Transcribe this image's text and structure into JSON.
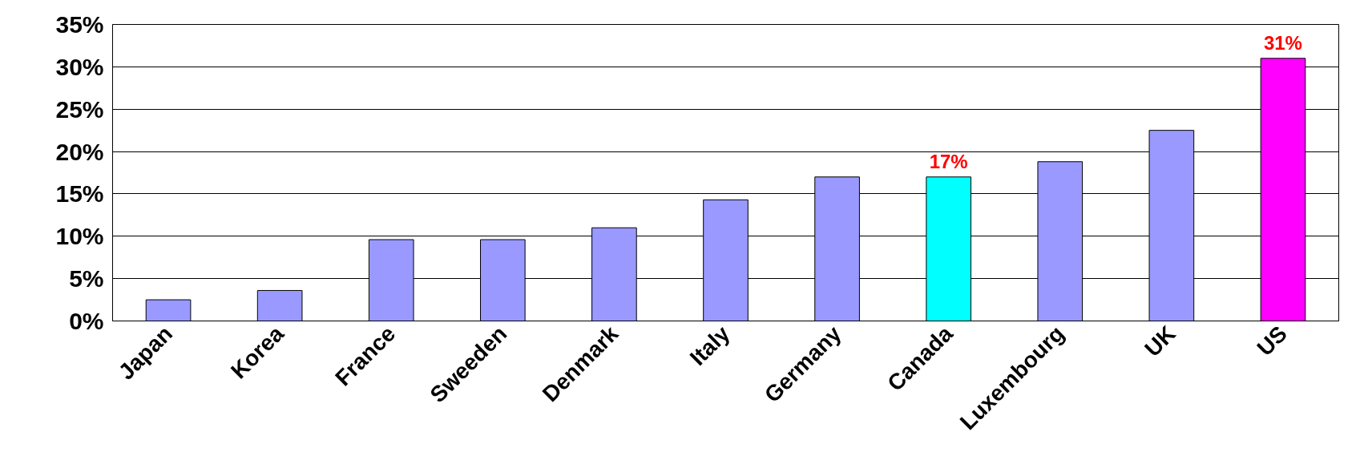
{
  "chart_data": {
    "type": "bar",
    "categories": [
      "Japan",
      "Korea",
      "France",
      "Sweeden",
      "Denmark",
      "Italy",
      "Germany",
      "Canada",
      "Luxembourg",
      "UK",
      "US"
    ],
    "values": [
      2.5,
      3.6,
      9.6,
      9.6,
      11,
      14.3,
      17,
      17,
      18.8,
      22.5,
      31
    ],
    "colors": [
      "#9999ff",
      "#9999ff",
      "#9999ff",
      "#9999ff",
      "#9999ff",
      "#9999ff",
      "#9999ff",
      "#00ffff",
      "#9999ff",
      "#9999ff",
      "#ff00ff"
    ],
    "value_labels": [
      null,
      null,
      null,
      null,
      null,
      null,
      null,
      "17%",
      null,
      null,
      "31%"
    ],
    "ylim": [
      0,
      35
    ],
    "yticks": [
      {
        "value": 0,
        "label": "0%"
      },
      {
        "value": 5,
        "label": "5%"
      },
      {
        "value": 10,
        "label": "10%"
      },
      {
        "value": 15,
        "label": "15%"
      },
      {
        "value": 20,
        "label": "20%"
      },
      {
        "value": 25,
        "label": "25%"
      },
      {
        "value": 30,
        "label": "30%"
      },
      {
        "value": 35,
        "label": "35%"
      }
    ],
    "grid": "y"
  }
}
